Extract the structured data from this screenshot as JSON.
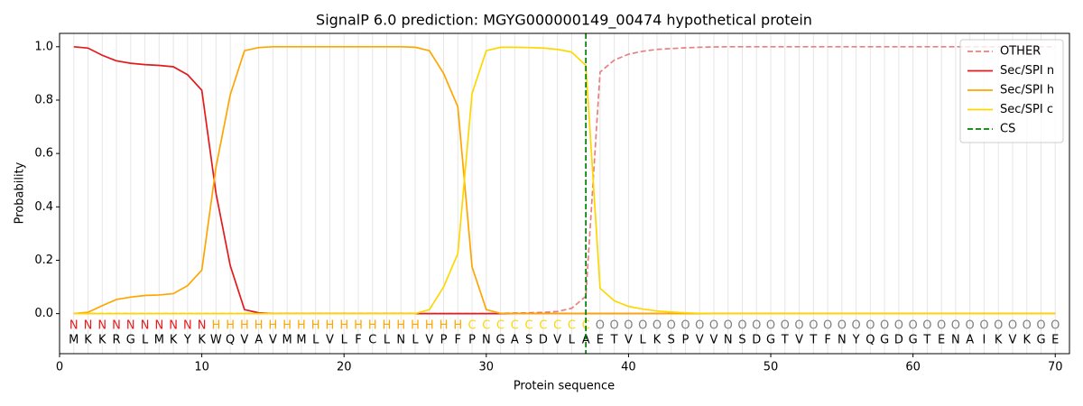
{
  "chart_data": {
    "type": "line",
    "title": "SignalP 6.0 prediction: MGYG000000149_00474 hypothetical protein",
    "xlabel": "Protein sequence",
    "ylabel": "Probability",
    "x": [
      1,
      2,
      3,
      4,
      5,
      6,
      7,
      8,
      9,
      10,
      11,
      12,
      13,
      14,
      15,
      16,
      17,
      18,
      19,
      20,
      21,
      22,
      23,
      24,
      25,
      26,
      27,
      28,
      29,
      30,
      31,
      32,
      33,
      34,
      35,
      36,
      37,
      38,
      39,
      40,
      41,
      42,
      43,
      44,
      45,
      46,
      47,
      48,
      49,
      50,
      51,
      52,
      53,
      54,
      55,
      56,
      57,
      58,
      59,
      60,
      61,
      62,
      63,
      64,
      65,
      66,
      67,
      68,
      69,
      70
    ],
    "sequence": [
      "M",
      "K",
      "K",
      "R",
      "G",
      "L",
      "M",
      "K",
      "Y",
      "K",
      "W",
      "Q",
      "V",
      "A",
      "V",
      "M",
      "M",
      "L",
      "V",
      "L",
      "F",
      "C",
      "L",
      "N",
      "L",
      "V",
      "P",
      "F",
      "P",
      "N",
      "G",
      "A",
      "S",
      "D",
      "V",
      "L",
      "A",
      "E",
      "T",
      "V",
      "L",
      "K",
      "S",
      "P",
      "V",
      "V",
      "N",
      "S",
      "D",
      "G",
      "T",
      "V",
      "T",
      "F",
      "N",
      "Y",
      "Q",
      "G",
      "D",
      "G",
      "T",
      "E",
      "N",
      "A",
      "I",
      "K",
      "V",
      "K",
      "G",
      "E"
    ],
    "labels": [
      "N",
      "N",
      "N",
      "N",
      "N",
      "N",
      "N",
      "N",
      "N",
      "N",
      "H",
      "H",
      "H",
      "H",
      "H",
      "H",
      "H",
      "H",
      "H",
      "H",
      "H",
      "H",
      "H",
      "H",
      "H",
      "H",
      "H",
      "H",
      "C",
      "C",
      "C",
      "C",
      "C",
      "C",
      "C",
      "C",
      "C",
      "O",
      "O",
      "O",
      "O",
      "O",
      "O",
      "O",
      "O",
      "O",
      "O",
      "O",
      "O",
      "O",
      "O",
      "O",
      "O",
      "O",
      "O",
      "O",
      "O",
      "O",
      "O",
      "O",
      "O",
      "O",
      "O",
      "O",
      "O",
      "O",
      "O",
      "O",
      "O",
      "O"
    ],
    "label_colors": {
      "N": "#e41a1c",
      "H": "#ffa500",
      "C": "#ffd700",
      "O": "#808080"
    },
    "series": [
      {
        "name": "OTHER",
        "color": "#e88080",
        "dashed": true,
        "values": [
          0,
          0,
          0,
          0,
          0,
          0,
          0,
          0,
          0,
          0,
          0,
          0,
          0,
          0,
          0,
          0,
          0,
          0,
          0,
          0,
          0,
          0,
          0,
          0,
          0,
          0,
          0,
          0,
          0,
          0,
          0.001,
          0.002,
          0.003,
          0.005,
          0.008,
          0.02,
          0.065,
          0.905,
          0.95,
          0.972,
          0.983,
          0.99,
          0.993,
          0.996,
          0.998,
          0.999,
          1,
          1,
          1,
          1,
          1,
          1,
          1,
          1,
          1,
          1,
          1,
          1,
          1,
          1,
          1,
          1,
          1,
          1,
          1,
          1,
          1,
          1,
          1,
          1
        ]
      },
      {
        "name": "Sec/SPI n",
        "color": "#e41a1c",
        "dashed": false,
        "values": [
          1.0,
          0.995,
          0.968,
          0.947,
          0.938,
          0.933,
          0.93,
          0.925,
          0.895,
          0.837,
          0.45,
          0.18,
          0.015,
          0.003,
          0,
          0,
          0,
          0,
          0,
          0,
          0,
          0,
          0,
          0,
          0,
          0,
          0,
          0,
          0,
          0,
          0,
          0,
          0,
          0,
          0,
          0,
          0,
          0,
          0,
          0,
          0,
          0,
          0,
          0,
          0,
          0,
          0,
          0,
          0,
          0,
          0,
          0,
          0,
          0,
          0,
          0,
          0,
          0,
          0,
          0,
          0,
          0,
          0,
          0,
          0,
          0,
          0,
          0,
          0,
          0
        ]
      },
      {
        "name": "Sec/SPI h",
        "color": "#ffa500",
        "dashed": false,
        "values": [
          0,
          0.005,
          0.03,
          0.053,
          0.062,
          0.068,
          0.07,
          0.075,
          0.105,
          0.163,
          0.55,
          0.82,
          0.985,
          0.997,
          1,
          1,
          1,
          1,
          1,
          1,
          1,
          1,
          1,
          1,
          0.998,
          0.985,
          0.9,
          0.775,
          0.175,
          0.015,
          0.001,
          0,
          0,
          0,
          0,
          0,
          0,
          0,
          0,
          0,
          0,
          0,
          0,
          0,
          0,
          0,
          0,
          0,
          0,
          0,
          0,
          0,
          0,
          0,
          0,
          0,
          0,
          0,
          0,
          0,
          0,
          0,
          0,
          0,
          0,
          0,
          0,
          0,
          0,
          0
        ]
      },
      {
        "name": "Sec/SPI c",
        "color": "#ffd700",
        "dashed": false,
        "values": [
          0,
          0,
          0,
          0,
          0,
          0,
          0,
          0,
          0,
          0,
          0,
          0,
          0,
          0,
          0,
          0,
          0,
          0,
          0,
          0,
          0,
          0,
          0,
          0,
          0,
          0.015,
          0.1,
          0.225,
          0.825,
          0.985,
          0.998,
          0.998,
          0.997,
          0.995,
          0.99,
          0.98,
          0.93,
          0.095,
          0.048,
          0.027,
          0.017,
          0.01,
          0.006,
          0.003,
          0.001,
          0,
          0,
          0,
          0,
          0,
          0,
          0,
          0,
          0,
          0,
          0,
          0,
          0,
          0,
          0,
          0,
          0,
          0,
          0,
          0,
          0,
          0,
          0,
          0,
          0
        ]
      }
    ],
    "cs": {
      "name": "CS",
      "x": 37,
      "color": "#008000"
    },
    "xlim": [
      0,
      71
    ],
    "ylim": [
      -0.15,
      1.05
    ],
    "xticks": [
      0,
      10,
      20,
      30,
      40,
      50,
      60,
      70
    ],
    "yticks": [
      {
        "value": 0,
        "label": "0.0"
      },
      {
        "value": 0.2,
        "label": "0.2"
      },
      {
        "value": 0.4,
        "label": "0.4"
      },
      {
        "value": 0.6,
        "label": "0.6"
      },
      {
        "value": 0.8,
        "label": "0.8"
      },
      {
        "value": 1,
        "label": "1.0"
      }
    ],
    "legend": "upper right",
    "grid": true
  }
}
